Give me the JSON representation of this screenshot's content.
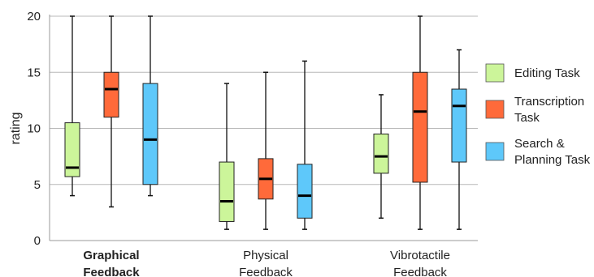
{
  "chart_data": {
    "type": "box",
    "ylabel": "rating",
    "ylim": [
      0,
      20
    ],
    "yticks": [
      0,
      5,
      10,
      15,
      20
    ],
    "grid": true,
    "legend_position": "right",
    "groups": [
      {
        "label_lines": [
          "Graphical",
          "Feedback"
        ],
        "bold": true
      },
      {
        "label_lines": [
          "Physical",
          "Feedback"
        ],
        "bold": false
      },
      {
        "label_lines": [
          "Vibrotactile",
          "Feedback"
        ],
        "bold": false
      }
    ],
    "series": [
      {
        "name": "Editing Task",
        "name_lines": [
          "Editing Task"
        ],
        "color": "#ccf59a",
        "boxes": [
          {
            "min": 4,
            "q1": 5.7,
            "median": 6.5,
            "q3": 10.5,
            "max": 20
          },
          {
            "min": 1,
            "q1": 1.7,
            "median": 3.5,
            "q3": 7,
            "max": 14
          },
          {
            "min": 2,
            "q1": 6,
            "median": 7.5,
            "q3": 9.5,
            "max": 13
          }
        ]
      },
      {
        "name": "Transcription Task",
        "name_lines": [
          "Transcription",
          "Task"
        ],
        "color": "#ff6a3a",
        "boxes": [
          {
            "min": 3,
            "q1": 11,
            "median": 13.5,
            "q3": 15,
            "max": 20
          },
          {
            "min": 1,
            "q1": 3.7,
            "median": 5.5,
            "q3": 7.3,
            "max": 15
          },
          {
            "min": 1,
            "q1": 5.2,
            "median": 11.5,
            "q3": 15,
            "max": 20
          }
        ]
      },
      {
        "name": "Search & Planning Task",
        "name_lines": [
          "Search &",
          "Planning Task"
        ],
        "color": "#5ec8fa",
        "boxes": [
          {
            "min": 4,
            "q1": 5,
            "median": 9,
            "q3": 14,
            "max": 20
          },
          {
            "min": 1,
            "q1": 2,
            "median": 4,
            "q3": 6.8,
            "max": 16
          },
          {
            "min": 1,
            "q1": 7,
            "median": 12,
            "q3": 13.5,
            "max": 17
          }
        ]
      }
    ]
  }
}
